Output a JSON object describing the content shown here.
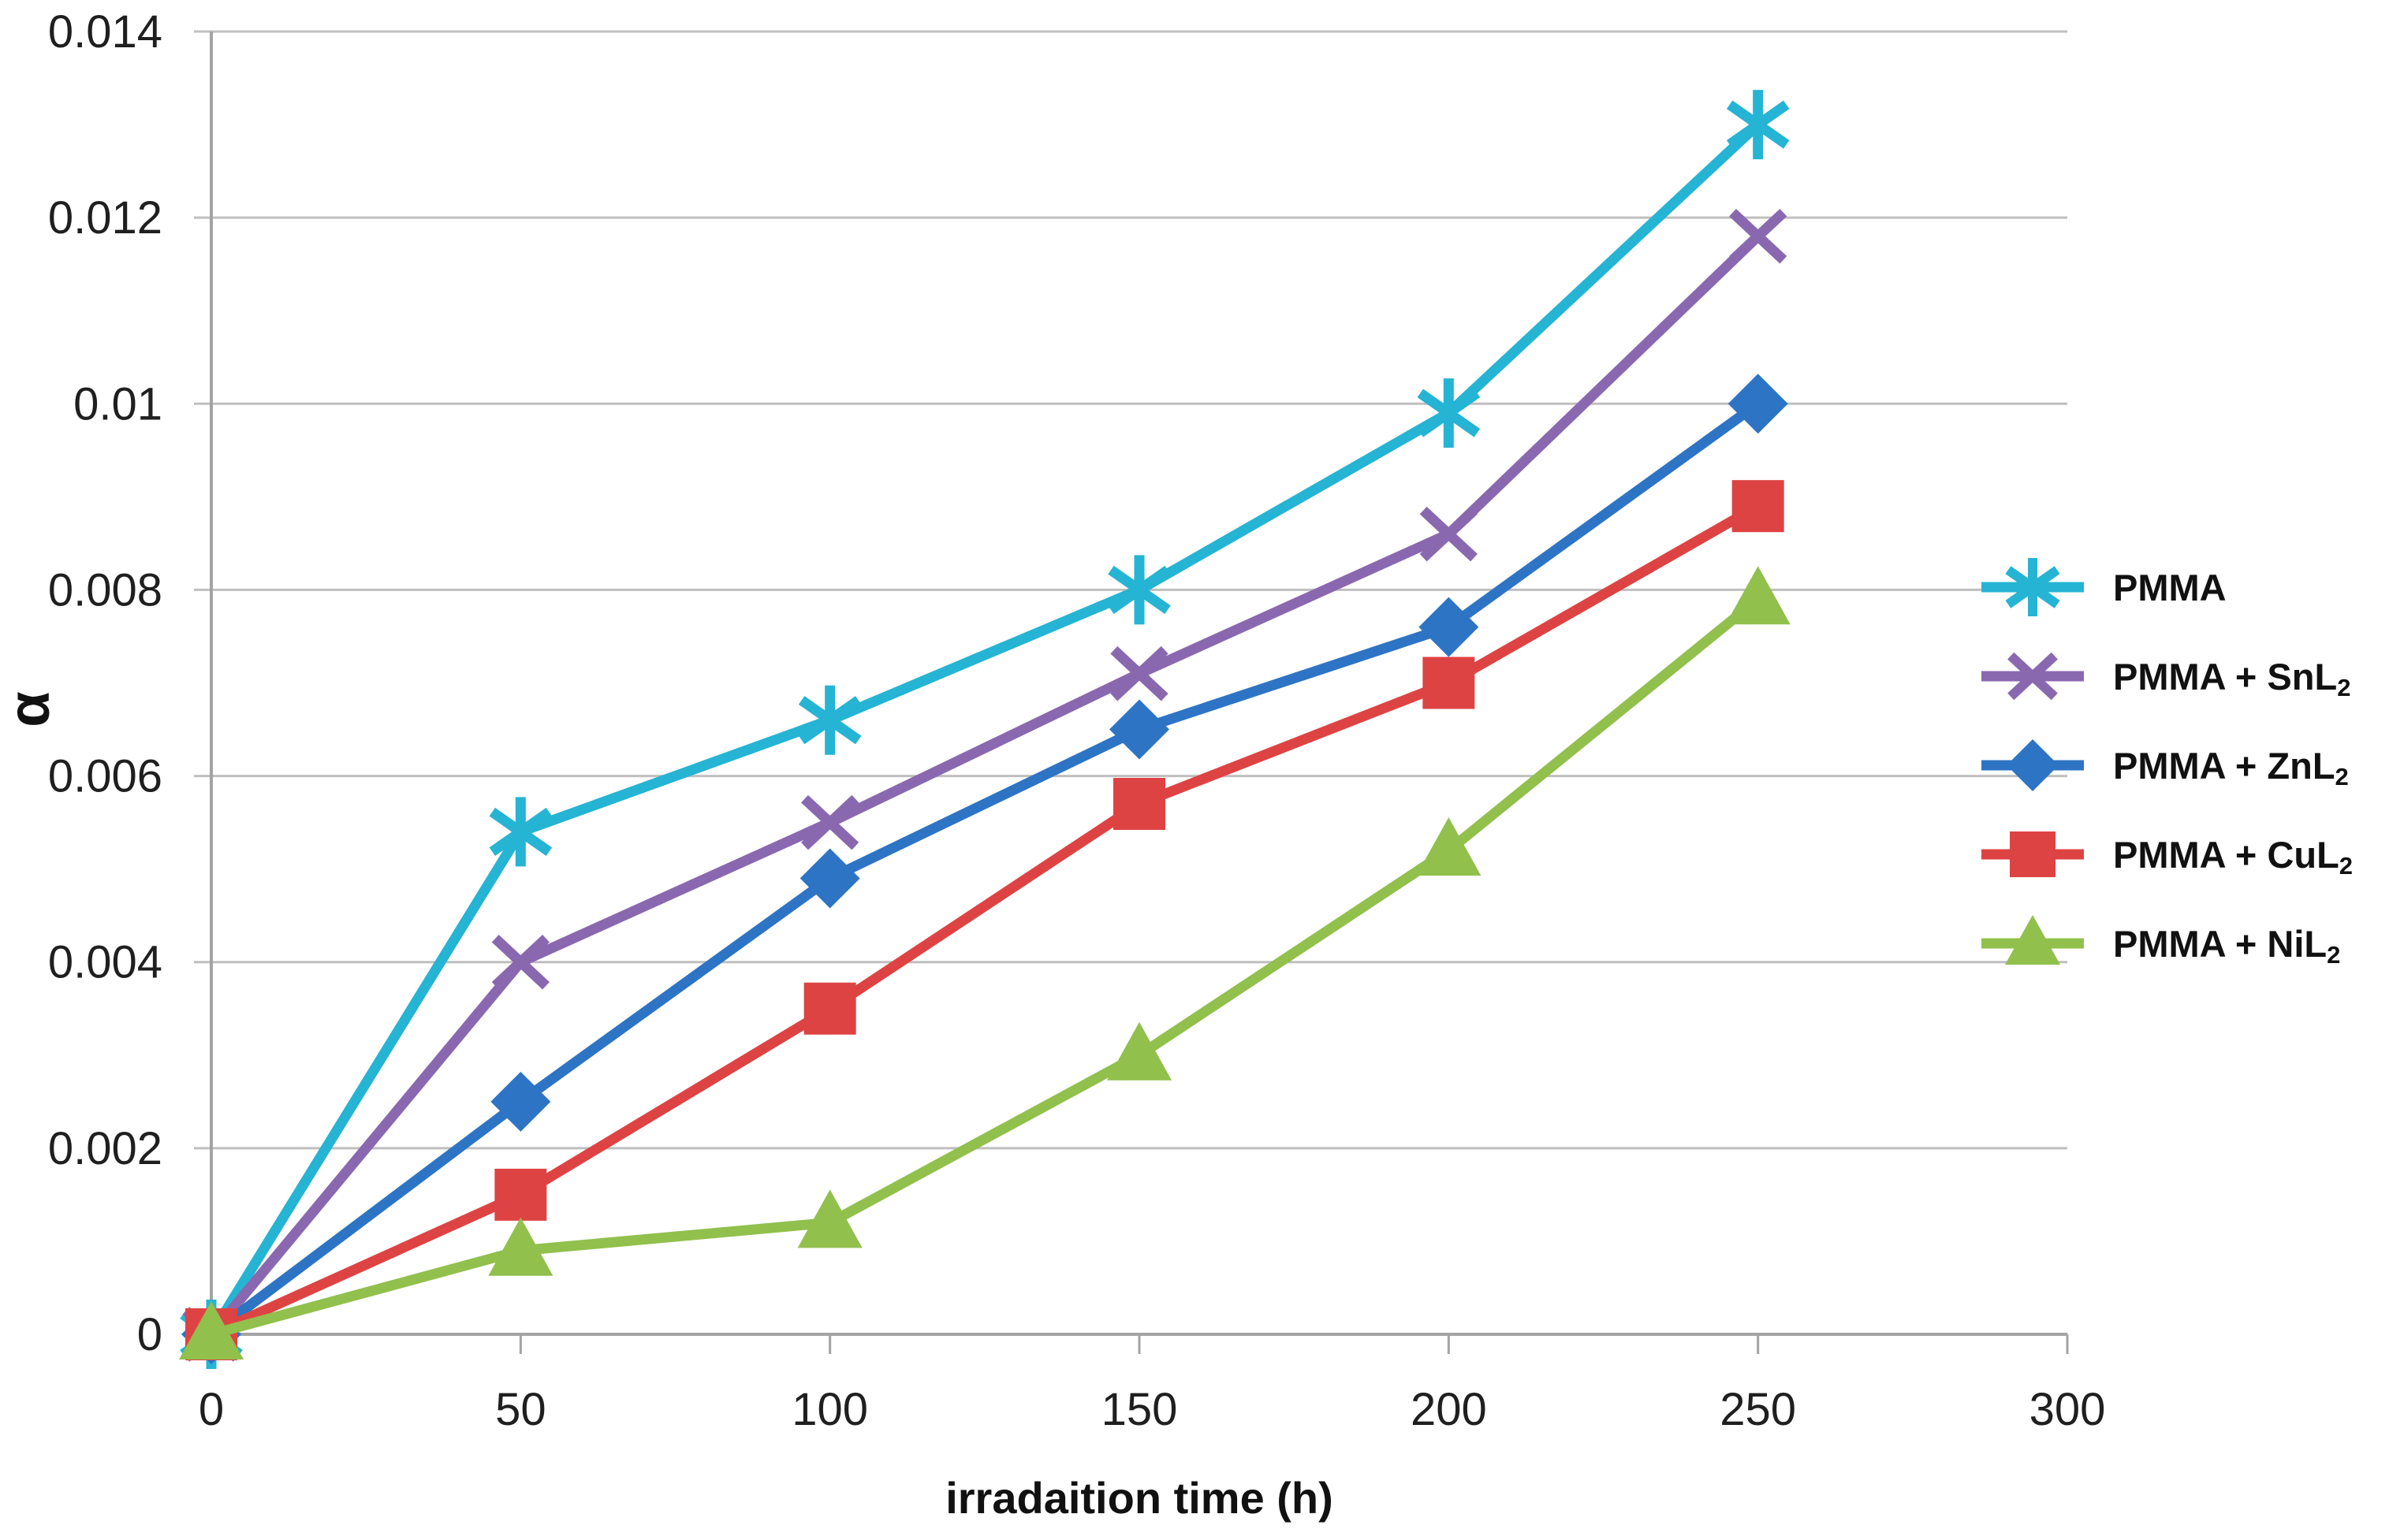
{
  "colors": {
    "gridline": "#BFBFBF",
    "axis": "#A3A3A3",
    "tick_text": "#1f1f1f",
    "title_text": "#111111",
    "background": "#FFFFFF"
  },
  "chart_data": {
    "type": "line",
    "title": "",
    "xlabel": "irradaition time (h)",
    "ylabel": "α",
    "x": [
      0,
      50,
      100,
      150,
      200,
      250
    ],
    "xlim": [
      0,
      300
    ],
    "ylim": [
      0,
      0.014
    ],
    "grid": "horizontal",
    "legend_position": "right",
    "x_ticks": [
      0,
      50,
      100,
      150,
      200,
      250,
      300
    ],
    "x_tick_labels": [
      "0",
      "50",
      "100",
      "150",
      "200",
      "250",
      "300"
    ],
    "y_ticks": [
      0,
      0.002,
      0.004,
      0.006,
      0.008,
      0.01,
      0.012,
      0.014
    ],
    "y_tick_labels": [
      "0",
      "0.002",
      "0.004",
      "0.006",
      "0.008",
      "0.01",
      "0.012",
      "0.014"
    ],
    "series": [
      {
        "name": "PMMA",
        "legend_main": "PMMA",
        "legend_sub": "",
        "marker": "asterisk",
        "color": "#25B4D3",
        "values": [
          0,
          0.0054,
          0.0066,
          0.008,
          0.0099,
          0.013
        ]
      },
      {
        "name": "PMMA + SnL2",
        "legend_main": "PMMA + SnL",
        "legend_sub": "2",
        "marker": "x",
        "color": "#8A68B0",
        "values": [
          0,
          0.004,
          0.0055,
          0.0071,
          0.0086,
          0.0118
        ]
      },
      {
        "name": "PMMA + ZnL2",
        "legend_main": "PMMA + ZnL",
        "legend_sub": "2",
        "marker": "diamond",
        "color": "#2D74C4",
        "values": [
          0,
          0.0025,
          0.0049,
          0.0065,
          0.0076,
          0.01
        ]
      },
      {
        "name": "PMMA + CuL2",
        "legend_main": "PMMA + CuL",
        "legend_sub": "2",
        "marker": "square",
        "color": "#DE4343",
        "values": [
          0,
          0.0015,
          0.0035,
          0.0057,
          0.007,
          0.0089
        ]
      },
      {
        "name": "PMMA + NiL2",
        "legend_main": "PMMA + NiL",
        "legend_sub": "2",
        "marker": "triangle",
        "color": "#91C04D",
        "values": [
          0,
          0.0009,
          0.0012,
          0.003,
          0.0052,
          0.0079
        ]
      }
    ]
  }
}
